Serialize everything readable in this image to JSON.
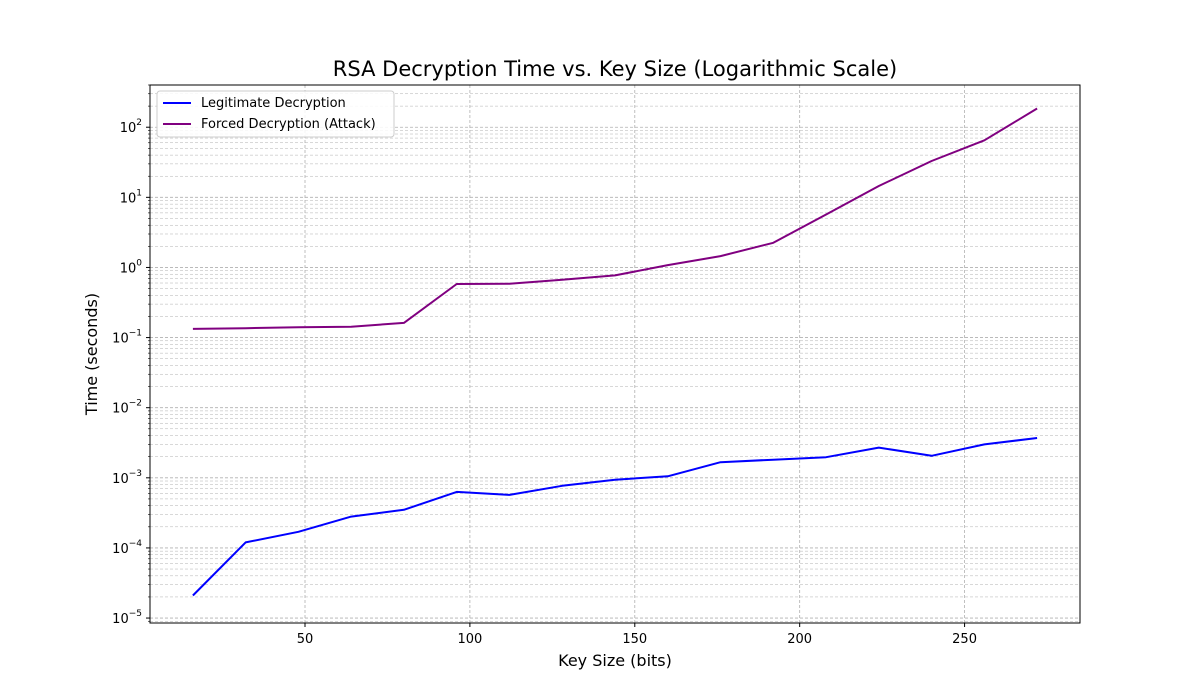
{
  "chart_data": {
    "type": "line",
    "title": "RSA Decryption Time vs. Key Size (Logarithmic Scale)",
    "xlabel": "Key Size (bits)",
    "ylabel": "Time (seconds)",
    "xlim": [
      3,
      285
    ],
    "ylim": [
      8.5e-06,
      400
    ],
    "yscale": "log",
    "grid": true,
    "legend_position": "top-left",
    "x_ticks": [
      {
        "value": 50,
        "label": "50"
      },
      {
        "value": 100,
        "label": "100"
      },
      {
        "value": 150,
        "label": "150"
      },
      {
        "value": 200,
        "label": "200"
      },
      {
        "value": 250,
        "label": "250"
      }
    ],
    "y_ticks": [
      {
        "value": 1e-05,
        "base": "10",
        "exp": "−5"
      },
      {
        "value": 0.0001,
        "base": "10",
        "exp": "−4"
      },
      {
        "value": 0.001,
        "base": "10",
        "exp": "−3"
      },
      {
        "value": 0.01,
        "base": "10",
        "exp": "−2"
      },
      {
        "value": 0.1,
        "base": "10",
        "exp": "−1"
      },
      {
        "value": 1,
        "base": "10",
        "exp": "0"
      },
      {
        "value": 10,
        "base": "10",
        "exp": "1"
      },
      {
        "value": 100,
        "base": "10",
        "exp": "2"
      }
    ],
    "x": [
      16,
      32,
      48,
      64,
      80,
      96,
      112,
      128,
      144,
      160,
      176,
      192,
      208,
      224,
      240,
      256,
      272
    ],
    "series": [
      {
        "name": "Legitimate Decryption",
        "color": "#0000ff",
        "values": [
          2.1e-05,
          0.00012,
          0.00017,
          0.00028,
          0.00035,
          0.00063,
          0.00057,
          0.00077,
          0.00094,
          0.00105,
          0.00167,
          0.00181,
          0.00197,
          0.0027,
          0.00206,
          0.003,
          0.0037
        ]
      },
      {
        "name": "Forced Decryption (Attack)",
        "color": "#800080",
        "values": [
          0.133,
          0.136,
          0.14,
          0.143,
          0.162,
          0.58,
          0.585,
          0.67,
          0.77,
          1.08,
          1.45,
          2.25,
          5.7,
          14.5,
          33,
          65,
          185
        ]
      }
    ]
  }
}
